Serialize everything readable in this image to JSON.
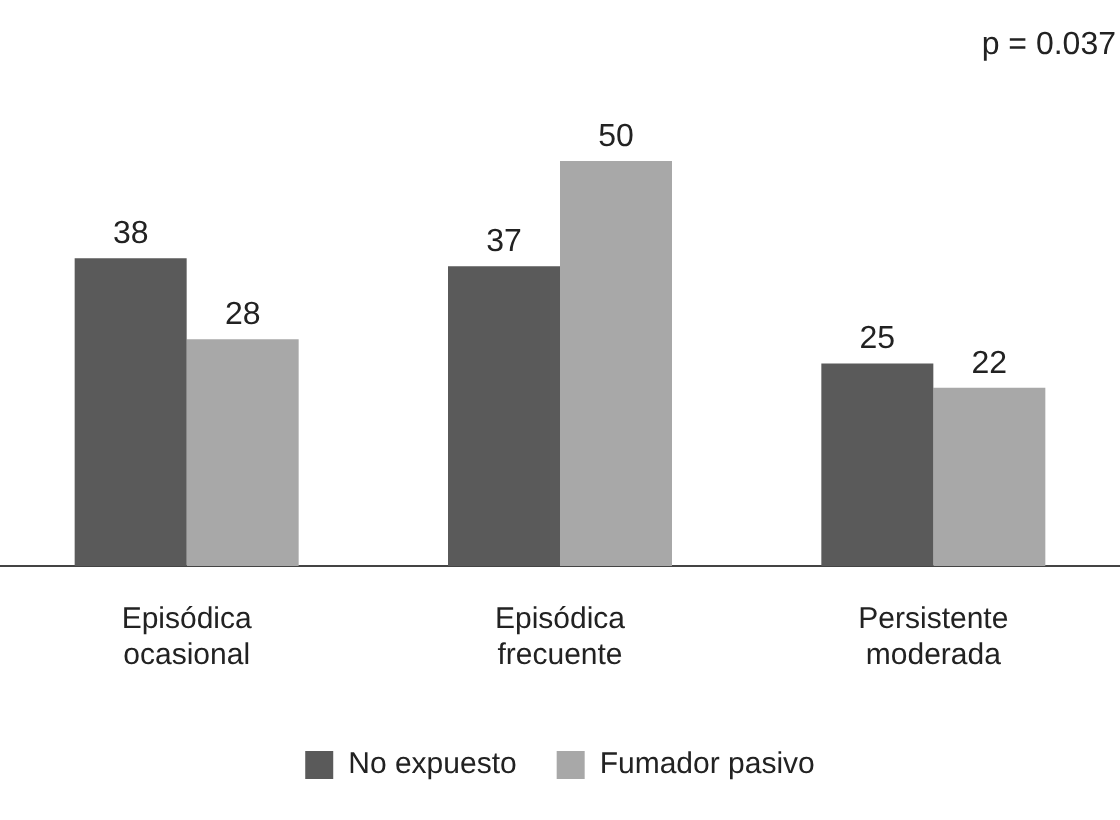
{
  "chart_data": {
    "type": "bar",
    "categories": [
      "Episódica ocasional",
      "Episódica frecuente",
      "Persistente moderada"
    ],
    "series": [
      {
        "name": "No expuesto",
        "color": "#5a5a5a",
        "values": [
          38,
          37,
          25
        ]
      },
      {
        "name": "Fumador pasivo",
        "color": "#a8a8a8",
        "values": [
          28,
          50,
          22
        ]
      }
    ],
    "data_labels": true,
    "legend": "bottom",
    "grid": false,
    "annotations": [
      "p = 0.037"
    ]
  }
}
